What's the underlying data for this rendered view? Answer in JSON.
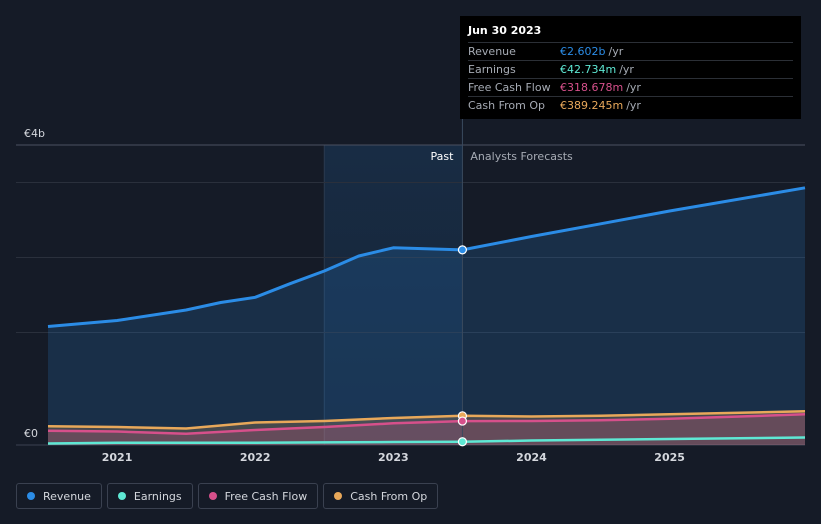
{
  "tooltip": {
    "date": "Jun 30 2023",
    "rows": [
      {
        "label": "Revenue",
        "value": "€2.602b",
        "unit": "/yr",
        "color": "#2b8ce6"
      },
      {
        "label": "Earnings",
        "value": "€42.734m",
        "unit": "/yr",
        "color": "#5ee8d4"
      },
      {
        "label": "Free Cash Flow",
        "value": "€318.678m",
        "unit": "/yr",
        "color": "#d6508b"
      },
      {
        "label": "Cash From Op",
        "value": "€389.245m",
        "unit": "/yr",
        "color": "#e8a85a"
      }
    ]
  },
  "chart_data": {
    "type": "line",
    "x_ticks": [
      2021,
      2022,
      2023,
      2024,
      2025
    ],
    "x_range": [
      2020.5,
      2025.98
    ],
    "ylim": [
      0,
      4
    ],
    "y_tick_labels": [
      {
        "value": 4,
        "label": "€4b"
      },
      {
        "value": 0,
        "label": "€0"
      }
    ],
    "y_gridlines": [
      4,
      3.5,
      2.5,
      1.5
    ],
    "past_label": "Past",
    "forecast_label": "Analysts Forecasts",
    "divider_x": 2023.5,
    "past_shade_start": 2022.5,
    "series": [
      {
        "name": "Revenue",
        "color": "#2b8ce6",
        "fill": true,
        "points": [
          [
            2020.5,
            1.58
          ],
          [
            2021.0,
            1.66
          ],
          [
            2021.5,
            1.8
          ],
          [
            2021.75,
            1.9
          ],
          [
            2022.0,
            1.97
          ],
          [
            2022.25,
            2.15
          ],
          [
            2022.5,
            2.32
          ],
          [
            2022.75,
            2.52
          ],
          [
            2023.0,
            2.63
          ],
          [
            2023.5,
            2.602
          ],
          [
            2024.0,
            2.78
          ],
          [
            2024.5,
            2.95
          ],
          [
            2025.0,
            3.12
          ],
          [
            2025.98,
            3.43
          ]
        ]
      },
      {
        "name": "Cash From Op",
        "color": "#e8a85a",
        "fill": true,
        "points": [
          [
            2020.5,
            0.25
          ],
          [
            2021.0,
            0.24
          ],
          [
            2021.5,
            0.22
          ],
          [
            2022.0,
            0.3
          ],
          [
            2022.5,
            0.32
          ],
          [
            2023.0,
            0.36
          ],
          [
            2023.5,
            0.389
          ],
          [
            2024.0,
            0.38
          ],
          [
            2024.5,
            0.39
          ],
          [
            2025.0,
            0.41
          ],
          [
            2025.98,
            0.45
          ]
        ]
      },
      {
        "name": "Free Cash Flow",
        "color": "#d6508b",
        "fill": true,
        "points": [
          [
            2020.5,
            0.19
          ],
          [
            2021.0,
            0.18
          ],
          [
            2021.5,
            0.15
          ],
          [
            2022.0,
            0.2
          ],
          [
            2022.5,
            0.24
          ],
          [
            2023.0,
            0.29
          ],
          [
            2023.5,
            0.319
          ],
          [
            2024.0,
            0.32
          ],
          [
            2024.5,
            0.33
          ],
          [
            2025.0,
            0.35
          ],
          [
            2025.98,
            0.41
          ]
        ]
      },
      {
        "name": "Earnings",
        "color": "#5ee8d4",
        "fill": false,
        "points": [
          [
            2020.5,
            0.02
          ],
          [
            2021.0,
            0.03
          ],
          [
            2021.5,
            0.03
          ],
          [
            2022.0,
            0.03
          ],
          [
            2022.5,
            0.035
          ],
          [
            2023.0,
            0.04
          ],
          [
            2023.5,
            0.043
          ],
          [
            2024.0,
            0.06
          ],
          [
            2024.5,
            0.07
          ],
          [
            2025.0,
            0.08
          ],
          [
            2025.98,
            0.1
          ]
        ]
      }
    ]
  },
  "legend": [
    {
      "label": "Revenue",
      "color": "#2b8ce6"
    },
    {
      "label": "Earnings",
      "color": "#5ee8d4"
    },
    {
      "label": "Free Cash Flow",
      "color": "#d6508b"
    },
    {
      "label": "Cash From Op",
      "color": "#e8a85a"
    }
  ]
}
